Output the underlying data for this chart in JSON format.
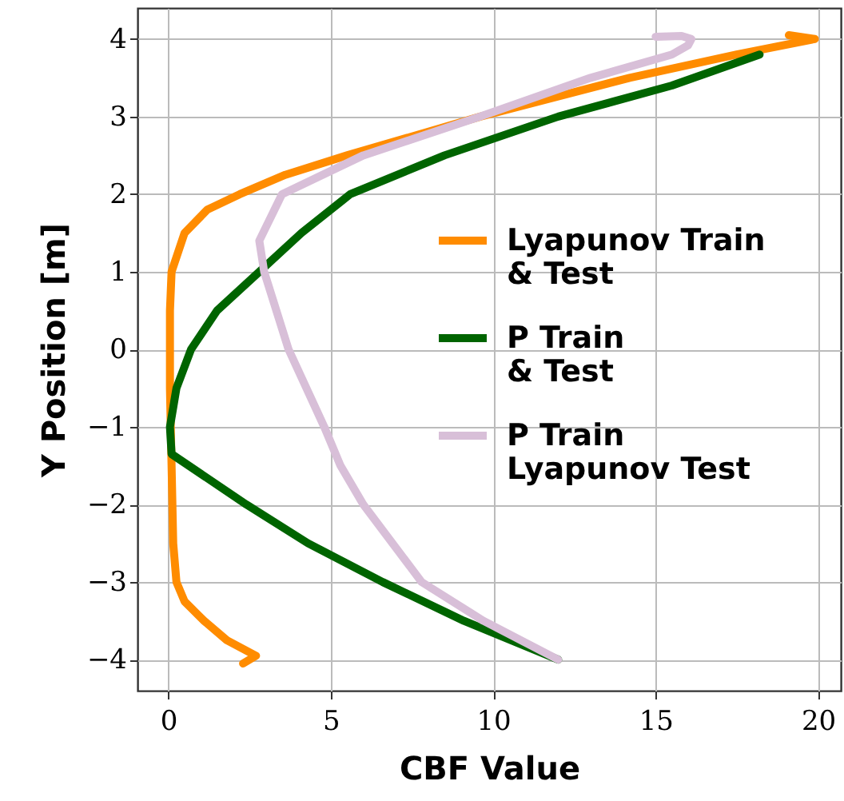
{
  "chart_data": {
    "type": "line",
    "xlabel": "CBF Value",
    "ylabel": "Y Position [m]",
    "xlim": [
      -0.95,
      20.7
    ],
    "ylim": [
      -4.4,
      4.4
    ],
    "xticks": [
      0,
      5,
      10,
      15,
      20
    ],
    "yticks": [
      -4,
      -3,
      -2,
      -1,
      0,
      1,
      2,
      3,
      4
    ],
    "grid": true,
    "legend": "right",
    "line_style": "solid",
    "marker": "none",
    "series": [
      {
        "name": "Lyapunov Train\n& Test",
        "color": "#ff8c00",
        "x": [
          2.3,
          2.7,
          1.8,
          1.1,
          0.5,
          0.25,
          0.15,
          0.1,
          0.05,
          0.05,
          0.1,
          0.5,
          1.2,
          2.2,
          3.6,
          5.5,
          9.6,
          14.2,
          17.5,
          19.9,
          19.1
        ],
        "values": [
          -4.05,
          -3.95,
          -3.75,
          -3.5,
          -3.25,
          -3.0,
          -2.5,
          -1.5,
          -0.5,
          0.5,
          1.0,
          1.5,
          1.8,
          2.0,
          2.25,
          2.5,
          3.0,
          3.5,
          3.8,
          4.0,
          4.05
        ]
      },
      {
        "name": "P Train\n& Test",
        "color": "#006400",
        "x": [
          12.0,
          9.1,
          6.6,
          4.3,
          2.4,
          0.1,
          0.05,
          0.25,
          0.7,
          1.5,
          2.8,
          4.1,
          5.6,
          8.5,
          12.0,
          15.5,
          18.2
        ],
        "values": [
          -4.0,
          -3.5,
          -3.0,
          -2.5,
          -2.0,
          -1.35,
          -1.0,
          -0.5,
          0.0,
          0.5,
          1.0,
          1.5,
          2.0,
          2.5,
          3.0,
          3.4,
          3.8
        ]
      },
      {
        "name": "P Train\nLyapunov Test",
        "color": "#d8bfd8",
        "x": [
          12.0,
          9.7,
          7.8,
          6.0,
          5.3,
          4.8,
          3.7,
          2.95,
          2.8,
          3.5,
          6.0,
          9.6,
          13.0,
          15.5,
          16.0,
          16.1,
          15.8,
          15.0
        ],
        "values": [
          -4.0,
          -3.5,
          -3.0,
          -2.0,
          -1.5,
          -1.0,
          0.0,
          1.0,
          1.4,
          2.0,
          2.5,
          3.0,
          3.5,
          3.8,
          3.92,
          4.0,
          4.04,
          4.03
        ]
      }
    ]
  }
}
